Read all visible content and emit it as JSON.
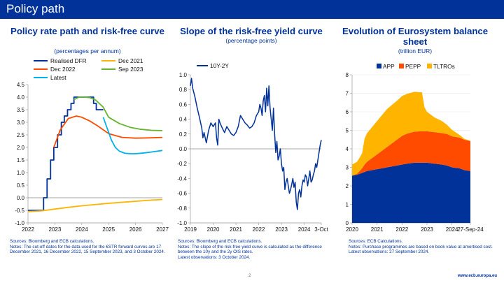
{
  "page": {
    "title": "Policy path",
    "page_number": "2",
    "footer": "www.ecb.europa.eu"
  },
  "chart_data": [
    {
      "type": "line",
      "title": "Policy rate path and risk-free curve",
      "subtitle": "(percentages per annum)",
      "ylim": [
        -1.0,
        4.5
      ],
      "yticks": [
        -1.0,
        -0.5,
        0.0,
        0.5,
        1.0,
        1.5,
        2.0,
        2.5,
        3.0,
        3.5,
        4.0,
        4.5
      ],
      "ytick_labels": [
        "-1.0",
        "-0.5",
        "0.0",
        "0.5",
        "1.0",
        "1.5",
        "2.0",
        "2.5",
        "3.0",
        "3.5",
        "4.0",
        "4.5"
      ],
      "xlim": [
        2022,
        2027
      ],
      "xticks": [
        2022,
        2023,
        2024,
        2025,
        2026,
        2027
      ],
      "xtick_labels": [
        "2022",
        "2023",
        "2024",
        "2025",
        "2026",
        "2027"
      ],
      "legend": "top",
      "series": [
        {
          "name": "Realised DFR",
          "color": "#003299",
          "step": true,
          "x": [
            2022.0,
            2022.58,
            2022.71,
            2022.84,
            2022.96,
            2023.1,
            2023.24,
            2023.35,
            2023.47,
            2023.6,
            2023.71,
            2024.44,
            2024.54,
            2024.71,
            2024.8
          ],
          "y": [
            -0.5,
            0.0,
            0.75,
            1.5,
            2.0,
            2.5,
            3.0,
            3.25,
            3.5,
            3.75,
            4.0,
            3.75,
            3.5,
            3.5,
            3.5
          ]
        },
        {
          "name": "Dec 2021",
          "color": "#ffb400",
          "x": [
            2022.0,
            2022.5,
            2023.0,
            2023.5,
            2024.0,
            2024.5,
            2025.0,
            2025.5,
            2026.0,
            2026.5,
            2027.0
          ],
          "y": [
            -0.55,
            -0.52,
            -0.45,
            -0.38,
            -0.32,
            -0.27,
            -0.22,
            -0.18,
            -0.14,
            -0.1,
            -0.07
          ]
        },
        {
          "name": "Dec 2022",
          "color": "#ff4b00",
          "x": [
            2022.96,
            2023.2,
            2023.5,
            2023.8,
            2024.0,
            2024.3,
            2024.6,
            2025.0,
            2025.5,
            2026.0,
            2026.5,
            2027.0
          ],
          "y": [
            2.0,
            2.7,
            3.15,
            3.25,
            3.2,
            3.05,
            2.85,
            2.55,
            2.4,
            2.37,
            2.38,
            2.4
          ]
        },
        {
          "name": "Sep 2023",
          "color": "#65b32e",
          "x": [
            2023.71,
            2023.9,
            2024.1,
            2024.3,
            2024.5,
            2024.8,
            2025.0,
            2025.4,
            2025.8,
            2026.2,
            2026.6,
            2027.0
          ],
          "y": [
            3.9,
            4.0,
            4.0,
            3.98,
            3.9,
            3.6,
            3.2,
            2.95,
            2.8,
            2.72,
            2.68,
            2.67
          ]
        },
        {
          "name": "Latest",
          "color": "#00b1ea",
          "x": [
            2024.8,
            2024.95,
            2025.1,
            2025.25,
            2025.4,
            2025.6,
            2025.8,
            2026.0,
            2026.3,
            2026.6,
            2027.0
          ],
          "y": [
            3.2,
            2.75,
            2.3,
            2.0,
            1.85,
            1.77,
            1.75,
            1.75,
            1.78,
            1.82,
            1.88
          ]
        }
      ]
    },
    {
      "type": "line",
      "title": "Slope of the risk-free yield curve",
      "subtitle": "(percentage points)",
      "ylim": [
        -1.0,
        1.0
      ],
      "yticks": [
        -1.0,
        -0.8,
        -0.6,
        -0.4,
        -0.2,
        0.0,
        0.2,
        0.4,
        0.6,
        0.8,
        1.0
      ],
      "ytick_labels": [
        "-1.0",
        "-0.8",
        "-0.6",
        "-0.4",
        "-0.2",
        "0.0",
        "0.2",
        "0.4",
        "0.6",
        "0.8",
        "1.0"
      ],
      "xlim": [
        2019,
        2024.75
      ],
      "xticks": [
        2019,
        2020,
        2021,
        2022,
        2023,
        2024,
        2024.75
      ],
      "xtick_labels": [
        "2019",
        "2020",
        "2021",
        "2022",
        "2023",
        "2024",
        "3-Oct"
      ],
      "legend": "top-left",
      "series": [
        {
          "name": "10Y-2Y",
          "color": "#003299",
          "x": [
            2019.0,
            2019.05,
            2019.1,
            2019.2,
            2019.3,
            2019.4,
            2019.5,
            2019.55,
            2019.6,
            2019.7,
            2019.8,
            2019.9,
            2020.0,
            2020.1,
            2020.15,
            2020.2,
            2020.25,
            2020.3,
            2020.4,
            2020.5,
            2020.6,
            2020.7,
            2020.8,
            2020.9,
            2021.0,
            2021.1,
            2021.2,
            2021.3,
            2021.4,
            2021.5,
            2021.6,
            2021.7,
            2021.8,
            2021.9,
            2022.0,
            2022.05,
            2022.1,
            2022.15,
            2022.2,
            2022.25,
            2022.3,
            2022.35,
            2022.4,
            2022.45,
            2022.5,
            2022.55,
            2022.6,
            2022.65,
            2022.7,
            2022.75,
            2022.8,
            2022.85,
            2022.9,
            2022.95,
            2023.0,
            2023.05,
            2023.1,
            2023.15,
            2023.2,
            2023.25,
            2023.3,
            2023.35,
            2023.4,
            2023.45,
            2023.5,
            2023.55,
            2023.6,
            2023.65,
            2023.7,
            2023.75,
            2023.8,
            2023.85,
            2023.9,
            2023.95,
            2024.0,
            2024.05,
            2024.1,
            2024.15,
            2024.2,
            2024.25,
            2024.3,
            2024.35,
            2024.4,
            2024.45,
            2024.5,
            2024.55,
            2024.6,
            2024.65,
            2024.7,
            2024.75
          ],
          "y": [
            0.85,
            0.95,
            0.82,
            0.7,
            0.55,
            0.42,
            0.28,
            0.15,
            0.22,
            0.08,
            0.25,
            0.35,
            0.3,
            0.35,
            0.15,
            0.05,
            0.4,
            0.35,
            0.28,
            0.22,
            0.3,
            0.25,
            0.2,
            0.18,
            0.22,
            0.3,
            0.45,
            0.4,
            0.35,
            0.32,
            0.28,
            0.3,
            0.35,
            0.45,
            0.5,
            0.6,
            0.55,
            0.45,
            0.65,
            0.72,
            0.5,
            0.82,
            0.58,
            0.85,
            0.55,
            0.4,
            0.25,
            0.55,
            0.2,
            -0.05,
            0.1,
            -0.15,
            -0.1,
            0.0,
            -0.2,
            -0.3,
            -0.25,
            -0.55,
            -0.45,
            -0.4,
            -0.5,
            -0.6,
            -0.55,
            -0.48,
            -0.4,
            -0.52,
            -0.45,
            -0.72,
            -0.82,
            -0.6,
            -0.55,
            -0.65,
            -0.5,
            -0.42,
            -0.45,
            -0.35,
            -0.38,
            -0.5,
            -0.4,
            -0.3,
            -0.45,
            -0.42,
            -0.35,
            -0.3,
            -0.2,
            -0.25,
            -0.15,
            -0.05,
            0.05,
            0.12
          ]
        }
      ]
    },
    {
      "type": "area",
      "stacked": true,
      "title": "Evolution of Eurosystem balance sheet",
      "subtitle": "(trillion EUR)",
      "ylim": [
        0,
        8
      ],
      "yticks": [
        0,
        1,
        2,
        3,
        4,
        5,
        6,
        7,
        8
      ],
      "ytick_labels": [
        "0",
        "1",
        "2",
        "3",
        "4",
        "5",
        "6",
        "7",
        "8"
      ],
      "xlim": [
        2020,
        2024.74
      ],
      "xticks": [
        2020,
        2021,
        2022,
        2023,
        2024,
        2024.74
      ],
      "xtick_labels": [
        "2020",
        "2021",
        "2022",
        "2023",
        "2024",
        "27-Sep-24"
      ],
      "legend": "top",
      "x": [
        2020.0,
        2020.2,
        2020.4,
        2020.5,
        2020.6,
        2021.0,
        2021.4,
        2021.8,
        2022.0,
        2022.2,
        2022.5,
        2022.8,
        2022.9,
        2023.0,
        2023.3,
        2023.6,
        2023.8,
        2024.0,
        2024.3,
        2024.5,
        2024.74
      ],
      "series": [
        {
          "name": "APP",
          "color": "#003299",
          "values": [
            2.55,
            2.6,
            2.7,
            2.75,
            2.8,
            2.9,
            3.0,
            3.1,
            3.15,
            3.2,
            3.25,
            3.25,
            3.25,
            3.25,
            3.2,
            3.15,
            3.1,
            3.0,
            2.95,
            2.85,
            2.8
          ]
        },
        {
          "name": "PEPP",
          "color": "#ff4b00",
          "values": [
            0.0,
            0.05,
            0.25,
            0.4,
            0.5,
            0.8,
            1.1,
            1.4,
            1.55,
            1.62,
            1.68,
            1.7,
            1.7,
            1.7,
            1.7,
            1.7,
            1.7,
            1.68,
            1.66,
            1.64,
            1.62
          ]
        },
        {
          "name": "TLTROs",
          "color": "#ffb400",
          "values": [
            0.6,
            0.65,
            0.8,
            1.4,
            1.55,
            1.8,
            2.05,
            2.1,
            2.15,
            2.15,
            2.15,
            2.1,
            1.3,
            1.05,
            0.8,
            0.65,
            0.5,
            0.35,
            0.15,
            0.05,
            0.02
          ]
        }
      ]
    }
  ],
  "notes": [
    {
      "sources": "Sources: Bloomberg and ECB calculations.",
      "text": "Notes: The cut-off dates for the data used for the €STR forward curves are 17 December 2021, 16 December 2022, 15 September 2023, and 3 October 2024."
    },
    {
      "sources": "Sources: Bloomberg and ECB calculations.",
      "text": "Notes: The slope of the risk-free yield curve is calculated as the difference between the 10y and the 2y OIS rates.",
      "extra": "Latest observations: 3 October 2024."
    },
    {
      "sources": "Sources: ECB Calculations.",
      "text": "Notes: Purchase programmes are based on book value at amortised cost.",
      "extra": "Latest observations: 27 September 2024."
    }
  ]
}
